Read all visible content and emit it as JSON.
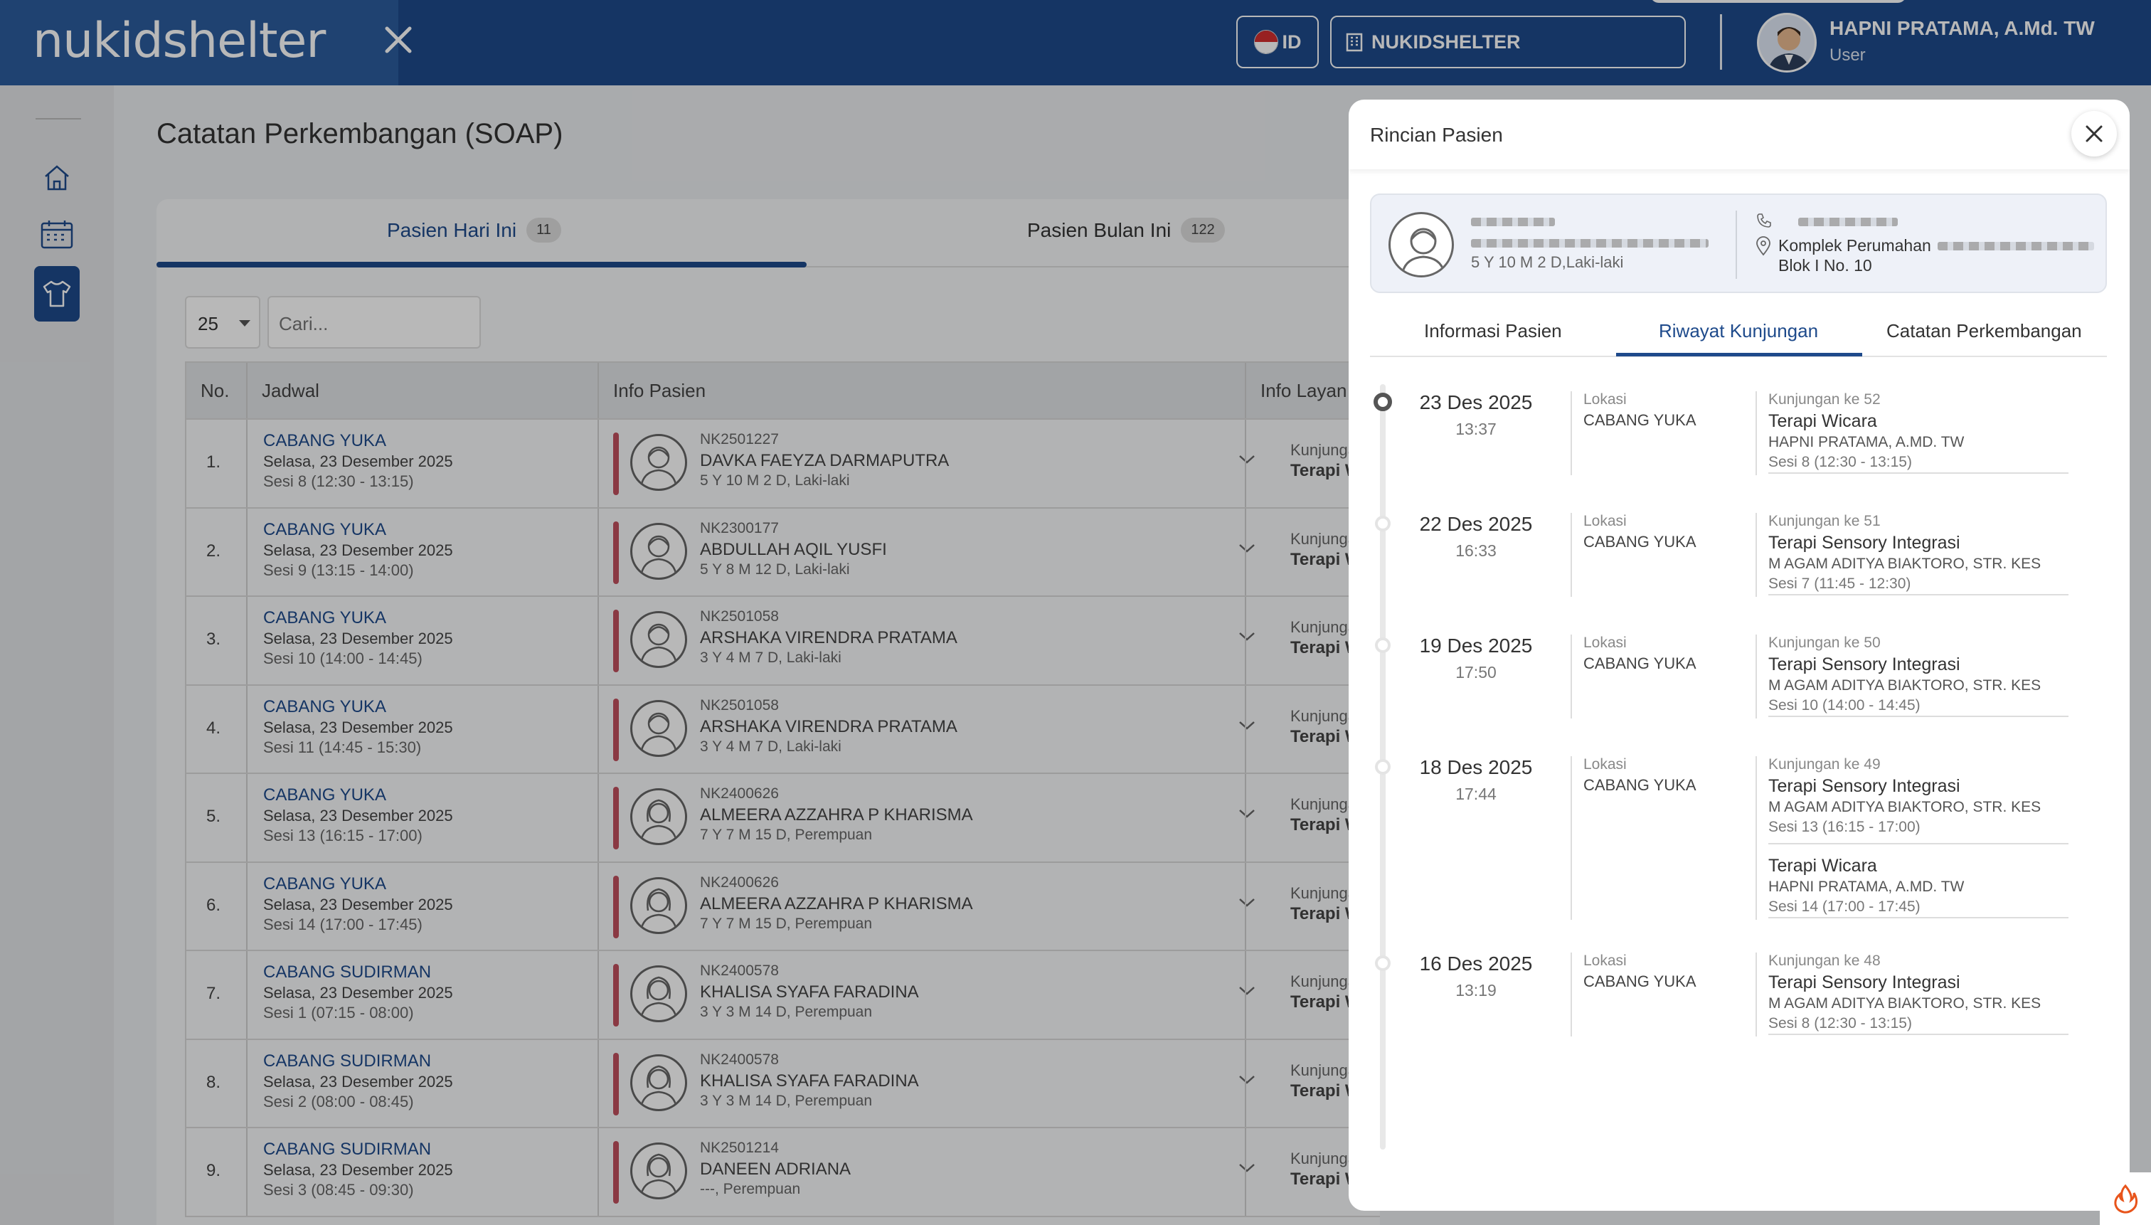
{
  "brand": "nukidshelter",
  "header": {
    "lang_code": "ID",
    "branch": "NUKIDSHELTER",
    "user_name": "HAPNI PRATAMA, A.Md. TW",
    "user_role": "User"
  },
  "page_title": "Catatan Perkembangan (SOAP)",
  "tabs": [
    {
      "label": "Pasien Hari Ini",
      "count": "11"
    },
    {
      "label": "Pasien Bulan Ini",
      "count": "122"
    }
  ],
  "page_size": "25",
  "search_placeholder": "Cari...",
  "columns": [
    "No.",
    "Jadwal",
    "Info Pasien",
    "Info Layan"
  ],
  "rows": [
    {
      "no": "1.",
      "loc": "CABANG YUKA",
      "date": "Selasa, 23 Desember 2025",
      "sesi": "Sesi 8 (12:30 - 13:15)",
      "id": "NK2501227",
      "name": "DAVKA FAEYZA DARMAPUTRA",
      "age": "5 Y 10 M 2 D, Laki-laki",
      "kunj": "Kunjungan k",
      "terapi": "Terapi Wica"
    },
    {
      "no": "2.",
      "loc": "CABANG YUKA",
      "date": "Selasa, 23 Desember 2025",
      "sesi": "Sesi 9 (13:15 - 14:00)",
      "id": "NK2300177",
      "name": "ABDULLAH AQIL YUSFI",
      "age": "5 Y 8 M 12 D, Laki-laki",
      "kunj": "Kunjungan k",
      "terapi": "Terapi Wica"
    },
    {
      "no": "3.",
      "loc": "CABANG YUKA",
      "date": "Selasa, 23 Desember 2025",
      "sesi": "Sesi 10 (14:00 - 14:45)",
      "id": "NK2501058",
      "name": "ARSHAKA VIRENDRA PRATAMA",
      "age": "3 Y 4 M 7 D, Laki-laki",
      "kunj": "Kunjungan k",
      "terapi": "Terapi Wica"
    },
    {
      "no": "4.",
      "loc": "CABANG YUKA",
      "date": "Selasa, 23 Desember 2025",
      "sesi": "Sesi 11 (14:45 - 15:30)",
      "id": "NK2501058",
      "name": "ARSHAKA VIRENDRA PRATAMA",
      "age": "3 Y 4 M 7 D, Laki-laki",
      "kunj": "Kunjungan k",
      "terapi": "Terapi Wica"
    },
    {
      "no": "5.",
      "loc": "CABANG YUKA",
      "date": "Selasa, 23 Desember 2025",
      "sesi": "Sesi 13 (16:15 - 17:00)",
      "id": "NK2400626",
      "name": "ALMEERA AZZAHRA P KHARISMA",
      "age": "7 Y 7 M 15 D, Perempuan",
      "kunj": "Kunjungan k",
      "terapi": "Terapi Wica"
    },
    {
      "no": "6.",
      "loc": "CABANG YUKA",
      "date": "Selasa, 23 Desember 2025",
      "sesi": "Sesi 14 (17:00 - 17:45)",
      "id": "NK2400626",
      "name": "ALMEERA AZZAHRA P KHARISMA",
      "age": "7 Y 7 M 15 D, Perempuan",
      "kunj": "Kunjungan k",
      "terapi": "Terapi Wica"
    },
    {
      "no": "7.",
      "loc": "CABANG SUDIRMAN",
      "date": "Selasa, 23 Desember 2025",
      "sesi": "Sesi 1 (07:15 - 08:00)",
      "id": "NK2400578",
      "name": "KHALISA SYAFA FARADINA",
      "age": "3 Y 3 M 14 D, Perempuan",
      "kunj": "Kunjungan k",
      "terapi": "Terapi Wica"
    },
    {
      "no": "8.",
      "loc": "CABANG SUDIRMAN",
      "date": "Selasa, 23 Desember 2025",
      "sesi": "Sesi 2 (08:00 - 08:45)",
      "id": "NK2400578",
      "name": "KHALISA SYAFA FARADINA",
      "age": "3 Y 3 M 14 D, Perempuan",
      "kunj": "Kunjungan k",
      "terapi": "Terapi Wica"
    },
    {
      "no": "9.",
      "loc": "CABANG SUDIRMAN",
      "date": "Selasa, 23 Desember 2025",
      "sesi": "Sesi 3 (08:45 - 09:30)",
      "id": "NK2501214",
      "name": "DANEEN ADRIANA",
      "age": "---, Perempuan",
      "kunj": "Kunjungan k",
      "terapi": "Terapi Wica"
    }
  ],
  "panel": {
    "title": "Rincian Pasien",
    "patient_info": "5 Y 10 M 2 D,Laki-laki",
    "address_line1": "Komplek Perumahan",
    "address_line2": "Blok I No. 10",
    "tabs": [
      "Informasi Pasien",
      "Riwayat Kunjungan",
      "Catatan Perkembangan"
    ],
    "visits": [
      {
        "date": "23 Des 2025",
        "time": "13:37",
        "loc_label": "Lokasi",
        "loc": "CABANG YUKA",
        "services": [
          {
            "kunjungan": "Kunjungan ke 52",
            "service": "Terapi Wicara",
            "therapist": "HAPNI PRATAMA, A.MD. TW",
            "sesi": "Sesi 8 (12:30 - 13:15)"
          }
        ]
      },
      {
        "date": "22 Des 2025",
        "time": "16:33",
        "loc_label": "Lokasi",
        "loc": "CABANG YUKA",
        "services": [
          {
            "kunjungan": "Kunjungan ke 51",
            "service": "Terapi Sensory Integrasi",
            "therapist": "M AGAM ADITYA BIAKTORO, STR. KES",
            "sesi": "Sesi 7 (11:45 - 12:30)"
          }
        ]
      },
      {
        "date": "19 Des 2025",
        "time": "17:50",
        "loc_label": "Lokasi",
        "loc": "CABANG YUKA",
        "services": [
          {
            "kunjungan": "Kunjungan ke 50",
            "service": "Terapi Sensory Integrasi",
            "therapist": "M AGAM ADITYA BIAKTORO, STR. KES",
            "sesi": "Sesi 10 (14:00 - 14:45)"
          }
        ]
      },
      {
        "date": "18 Des 2025",
        "time": "17:44",
        "loc_label": "Lokasi",
        "loc": "CABANG YUKA",
        "services": [
          {
            "kunjungan": "Kunjungan ke 49",
            "service": "Terapi Sensory Integrasi",
            "therapist": "M AGAM ADITYA BIAKTORO, STR. KES",
            "sesi": "Sesi 13 (16:15 - 17:00)"
          },
          {
            "kunjungan": "",
            "service": "Terapi Wicara",
            "therapist": "HAPNI PRATAMA, A.MD. TW",
            "sesi": "Sesi 14 (17:00 - 17:45)"
          }
        ]
      },
      {
        "date": "16 Des 2025",
        "time": "13:19",
        "loc_label": "Lokasi",
        "loc": "CABANG YUKA",
        "services": [
          {
            "kunjungan": "Kunjungan ke 48",
            "service": "Terapi Sensory Integrasi",
            "therapist": "M AGAM ADITYA BIAKTORO, STR. KES",
            "sesi": "Sesi 8 (12:30 - 13:15)"
          }
        ]
      }
    ]
  },
  "colors": {
    "primary": "#1e4a8b",
    "accent_bar": "#c0505e"
  }
}
